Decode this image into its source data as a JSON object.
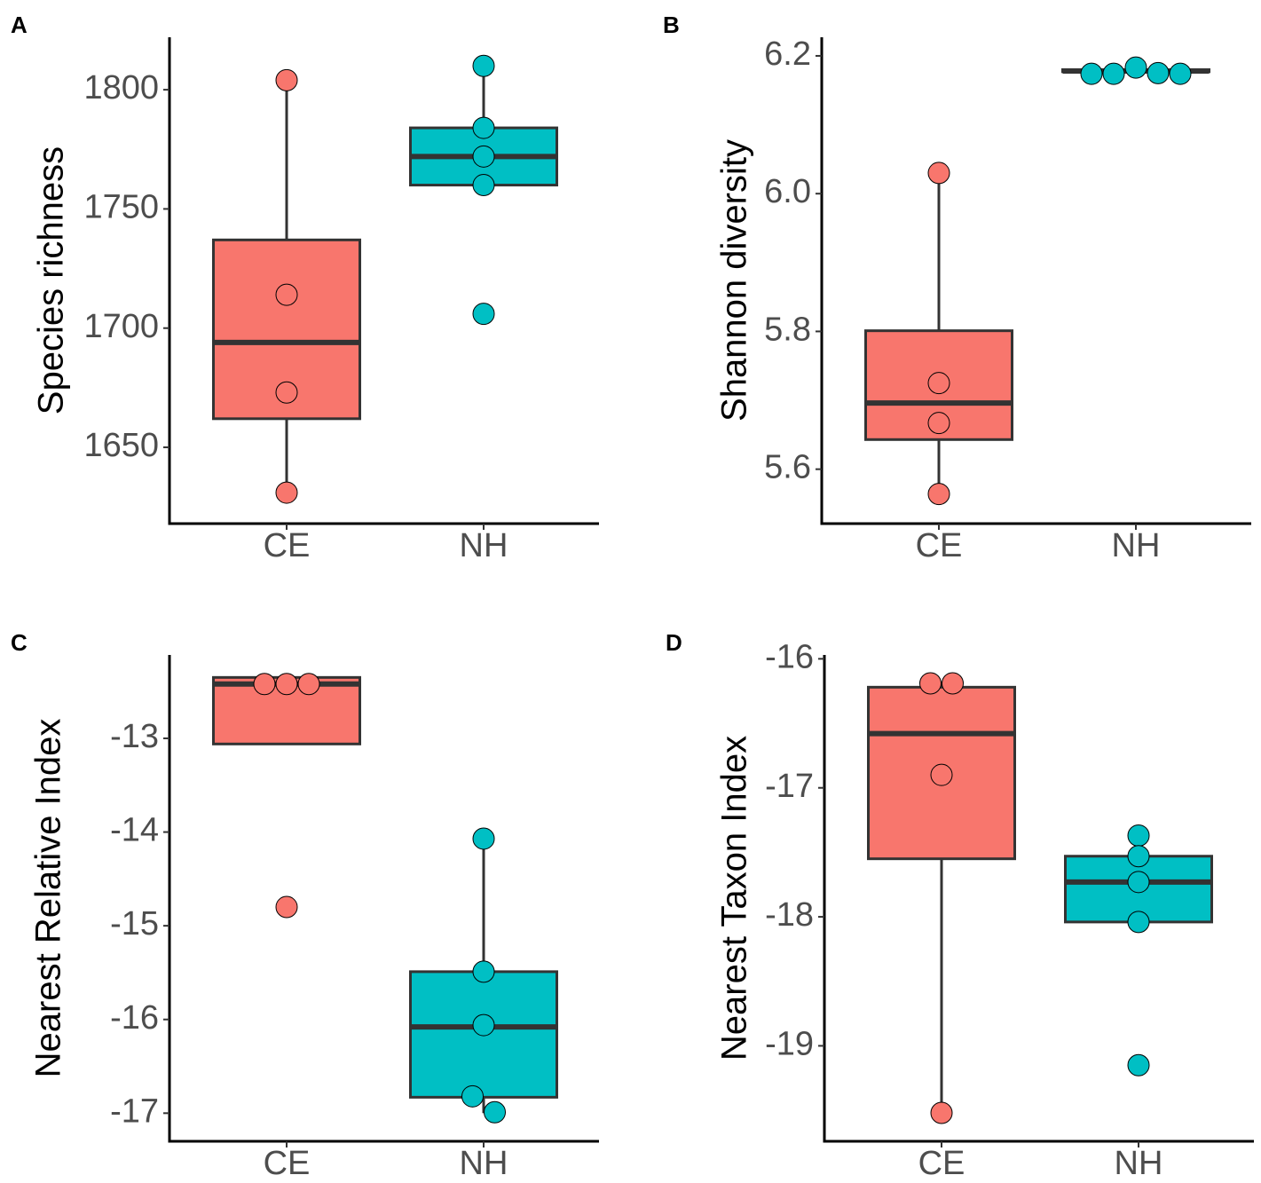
{
  "chart_data": [
    {
      "type": "box",
      "panel_label": "A",
      "y_label": "Species richness",
      "categories": [
        "CE",
        "NH"
      ],
      "colors": [
        "#F8766D",
        "#00BFC4"
      ],
      "ylim": [
        1618,
        1822
      ],
      "yticks": [
        1650,
        1700,
        1750,
        1800
      ],
      "boxes": [
        {
          "whisker_low": 1631,
          "q1": 1662,
          "median": 1694,
          "q3": 1737,
          "whisker_high": 1804,
          "points": [
            1804,
            1714,
            1673,
            1631
          ]
        },
        {
          "whisker_low": 1760,
          "q1": 1760,
          "median": 1772,
          "q3": 1784,
          "whisker_high": 1810,
          "points": [
            1810,
            1784,
            1772,
            1760,
            1706
          ]
        }
      ]
    },
    {
      "type": "box",
      "panel_label": "B",
      "y_label": "Shannon diversity",
      "categories": [
        "CE",
        "NH"
      ],
      "colors": [
        "#F8766D",
        "#00BFC4"
      ],
      "ylim": [
        5.521,
        6.227
      ],
      "yticks": [
        5.6,
        5.8,
        {
          "value": 6,
          "label": "6.0"
        },
        6.2
      ],
      "boxes": [
        {
          "whisker_low": 5.564,
          "q1": 5.643,
          "median": 5.696,
          "q3": 5.801,
          "whisker_high": 6.03,
          "points": [
            6.03,
            5.725,
            5.667,
            5.564
          ]
        },
        {
          "whisker_low": 6.174,
          "q1": 6.177,
          "median": 6.178,
          "q3": 6.18,
          "whisker_high": 6.183,
          "points": [
            6.174,
            6.174,
            6.183,
            6.175,
            6.174
          ]
        }
      ]
    },
    {
      "type": "box",
      "panel_label": "C",
      "y_label": "Nearest Relative Index",
      "categories": [
        "CE",
        "NH"
      ],
      "colors": [
        "#F8766D",
        "#00BFC4"
      ],
      "ylim": [
        -17.3,
        -12.11
      ],
      "yticks": [
        -17,
        -16,
        -15,
        -14,
        -13
      ],
      "boxes": [
        {
          "whisker_low": -13.06,
          "q1": -13.06,
          "median": -12.42,
          "q3": -12.35,
          "whisker_high": -12.35,
          "points": [
            -12.42,
            -12.42,
            -12.42,
            -14.8
          ]
        },
        {
          "whisker_low": -17.0,
          "q1": -16.83,
          "median": -16.08,
          "q3": -15.49,
          "whisker_high": -14.07,
          "points": [
            -14.07,
            -15.49,
            -16.06,
            -16.82,
            -16.99
          ]
        }
      ]
    },
    {
      "type": "box",
      "panel_label": "D",
      "y_label": "Nearest Taxon Index",
      "categories": [
        "CE",
        "NH"
      ],
      "colors": [
        "#F8766D",
        "#00BFC4"
      ],
      "ylim": [
        -19.74,
        -15.97
      ],
      "yticks": [
        -19,
        -18,
        -17,
        -16
      ],
      "boxes": [
        {
          "whisker_low": -19.52,
          "q1": -17.55,
          "median": -16.58,
          "q3": -16.22,
          "whisker_high": -16.19,
          "points": [
            -16.19,
            -16.19,
            -16.9,
            -19.52
          ]
        },
        {
          "whisker_low": -18.04,
          "q1": -18.04,
          "median": -17.73,
          "q3": -17.53,
          "whisker_high": -17.37,
          "points": [
            -17.37,
            -17.53,
            -17.73,
            -18.04,
            -19.15
          ]
        }
      ]
    }
  ]
}
